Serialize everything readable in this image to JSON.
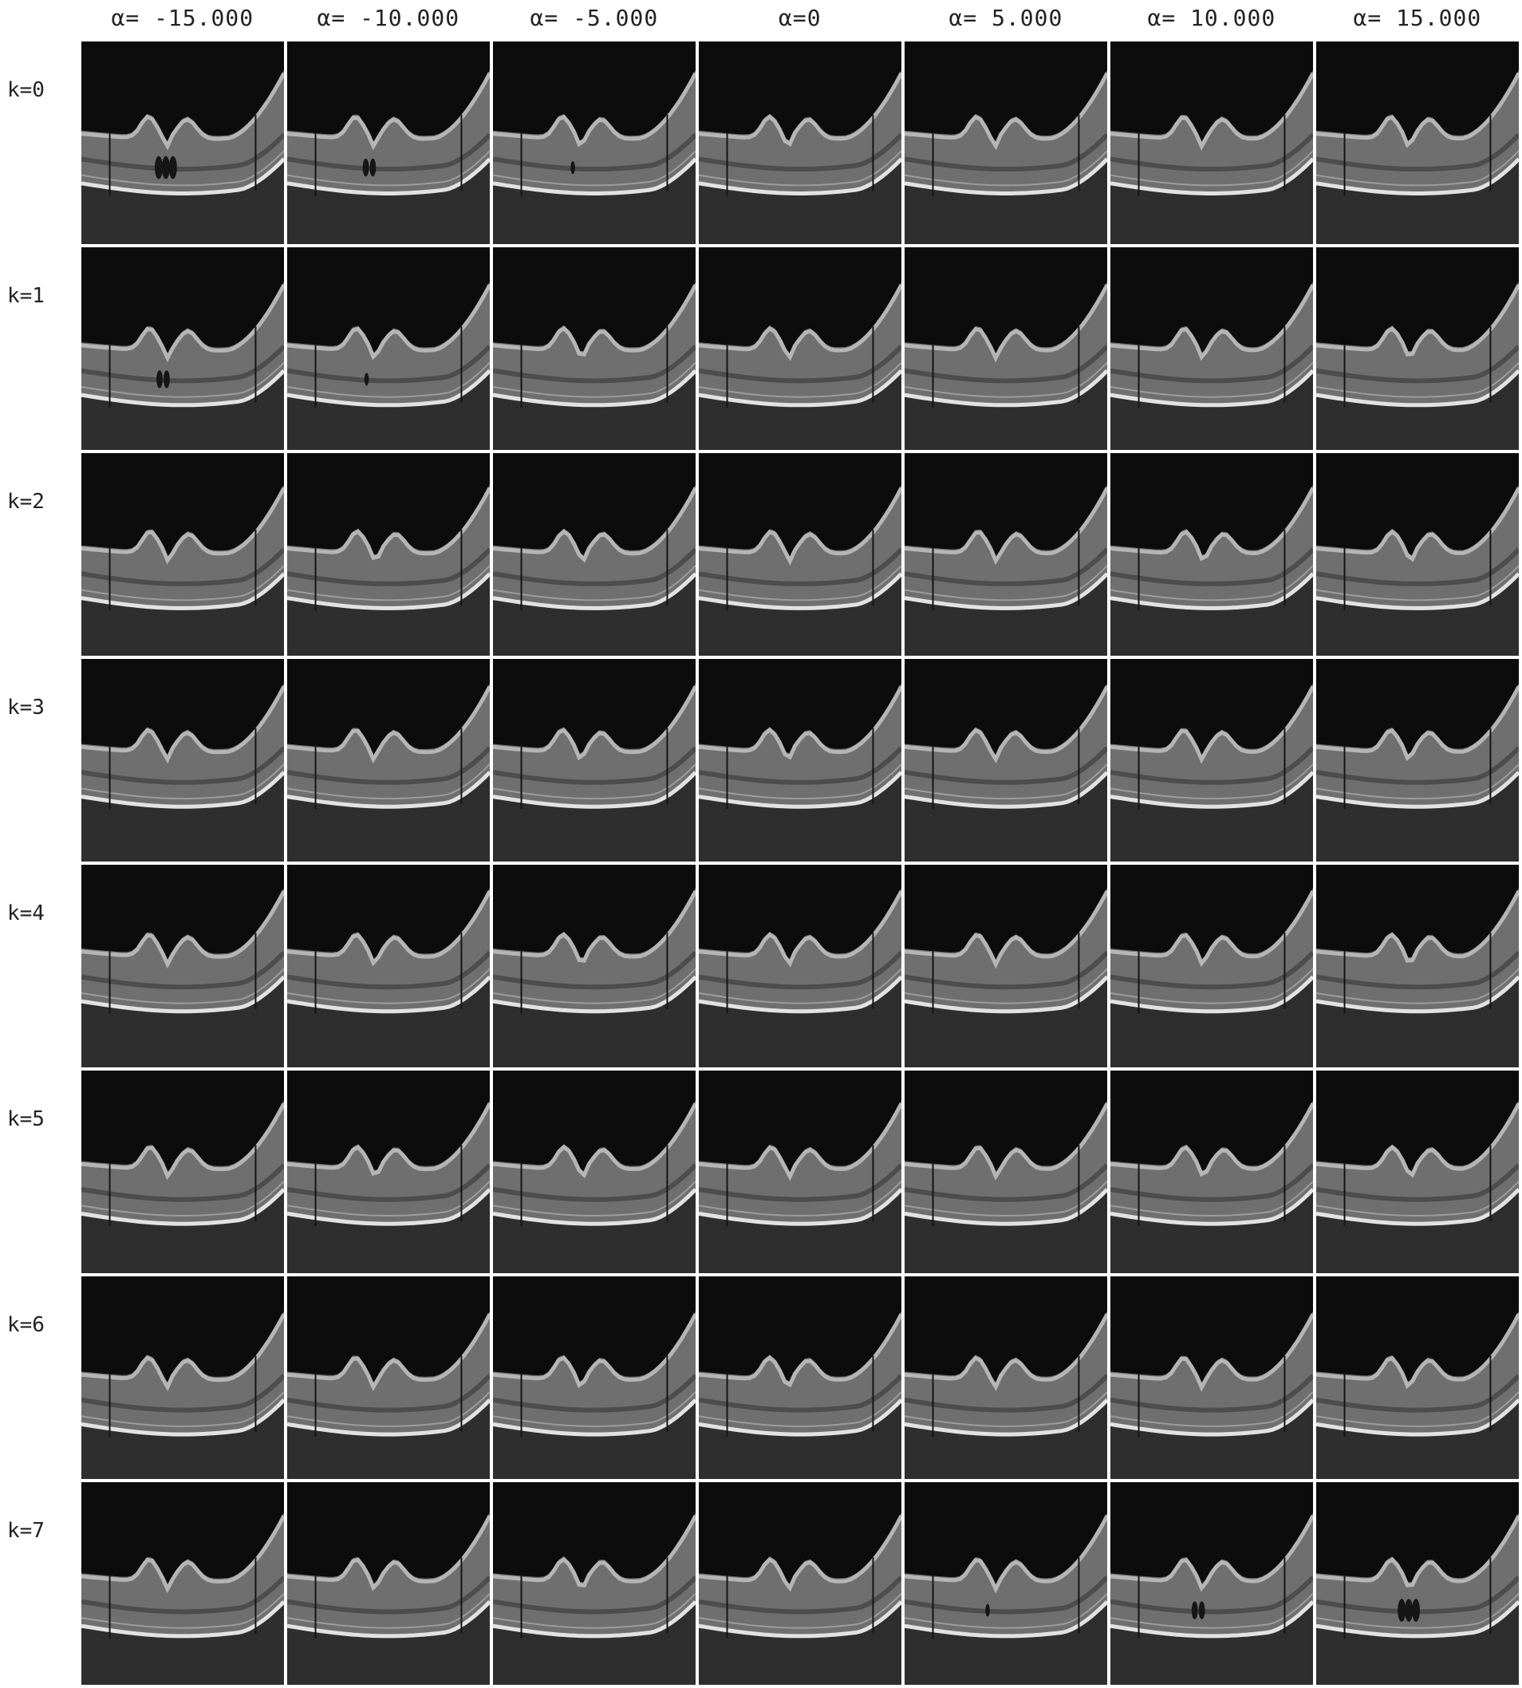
{
  "figure": {
    "column_labels": [
      "α= -15.000",
      "α= -10.000",
      "α= -5.000",
      "α=0",
      "α= 5.000",
      "α= 10.000",
      "α= 15.000"
    ],
    "row_labels": [
      "k=0",
      "k=1",
      "k=2",
      "k=3",
      "k=4",
      "k=5",
      "k=6",
      "k=7"
    ],
    "tile_content": "retinal OCT B-scan",
    "colors": {
      "background": "#ffffff",
      "tile_dark": "#0c0c0c",
      "tissue": "#8a8a8a",
      "bright_band": "#e6e6e6"
    }
  }
}
